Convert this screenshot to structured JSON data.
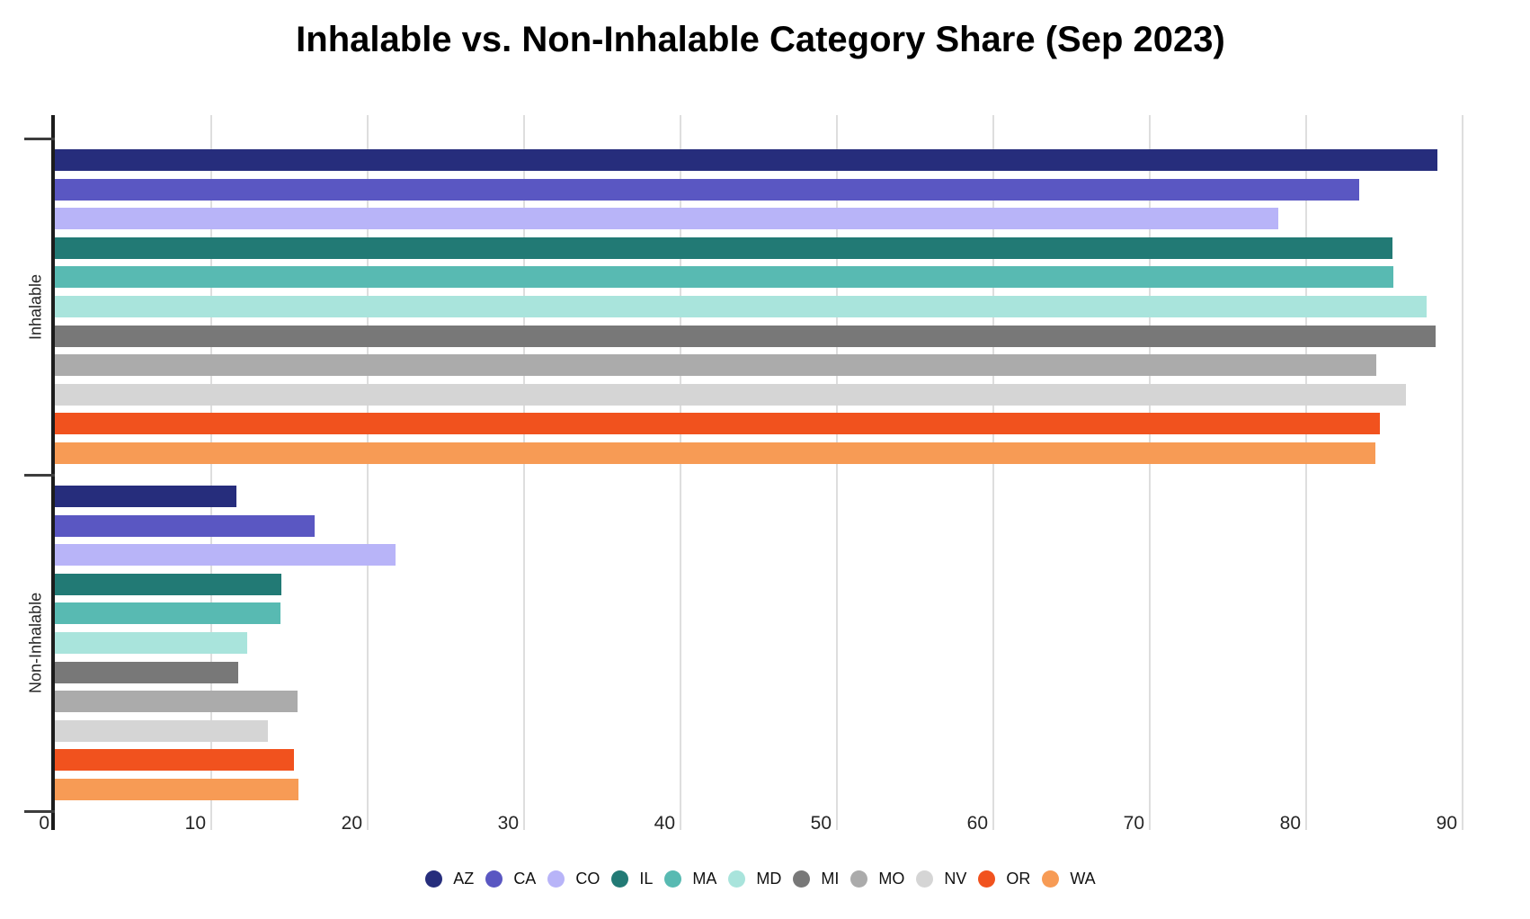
{
  "chart_data": {
    "type": "bar",
    "orientation": "horizontal",
    "title": "Inhalable vs. Non-Inhalable Category Share (Sep 2023)",
    "groups": [
      "Inhalable",
      "Non-Inhalable"
    ],
    "x_ticks": [
      0,
      10,
      20,
      30,
      40,
      50,
      60,
      70,
      80,
      90
    ],
    "xlim": [
      0,
      94
    ],
    "grid": "vertical",
    "gridline_color": "#dedede",
    "axis_color": "#1c1c1c",
    "legend_position": "bottom-center",
    "series": [
      {
        "state": "AZ",
        "color": "#262d7c",
        "values": [
          88.4,
          11.6
        ]
      },
      {
        "state": "CA",
        "color": "#5a57c2",
        "values": [
          83.4,
          16.6
        ]
      },
      {
        "state": "CO",
        "color": "#b8b4f8",
        "values": [
          78.2,
          21.8
        ]
      },
      {
        "state": "IL",
        "color": "#227a75",
        "values": [
          85.5,
          14.5
        ]
      },
      {
        "state": "MA",
        "color": "#58bab2",
        "values": [
          85.6,
          14.4
        ]
      },
      {
        "state": "MD",
        "color": "#a9e4dc",
        "values": [
          87.7,
          12.3
        ]
      },
      {
        "state": "MI",
        "color": "#787878",
        "values": [
          88.3,
          11.7
        ]
      },
      {
        "state": "MO",
        "color": "#ababab",
        "values": [
          84.5,
          15.5
        ]
      },
      {
        "state": "NV",
        "color": "#d5d5d5",
        "values": [
          86.4,
          13.6
        ]
      },
      {
        "state": "OR",
        "color": "#f1521e",
        "values": [
          84.7,
          15.3
        ]
      },
      {
        "state": "WA",
        "color": "#f79b55",
        "values": [
          84.4,
          15.6
        ]
      }
    ]
  }
}
